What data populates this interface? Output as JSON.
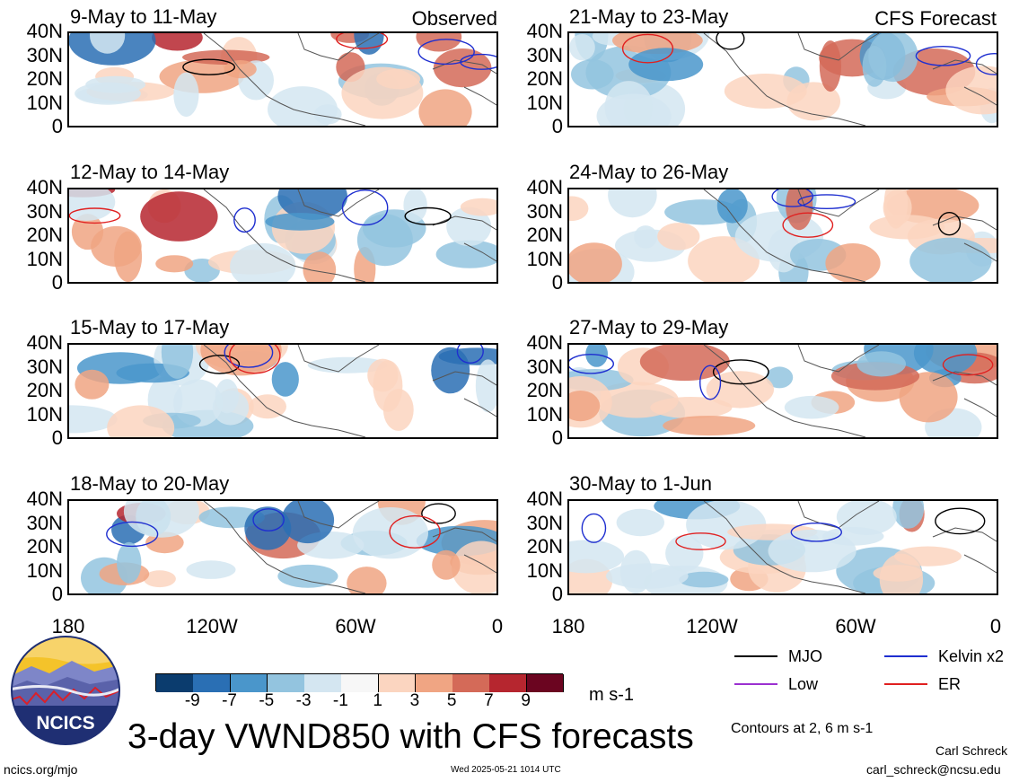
{
  "header": {
    "left_label": "Observed",
    "right_label": "CFS Forecast"
  },
  "panels_left": [
    {
      "title": "9-May to 11-May"
    },
    {
      "title": "12-May to 14-May"
    },
    {
      "title": "15-May to 17-May"
    },
    {
      "title": "18-May to 20-May"
    }
  ],
  "panels_right": [
    {
      "title": "21-May to 23-May"
    },
    {
      "title": "24-May to 26-May"
    },
    {
      "title": "27-May to 29-May"
    },
    {
      "title": "30-May to 1-Jun"
    }
  ],
  "y_ticks": [
    "40N",
    "30N",
    "20N",
    "10N",
    "0"
  ],
  "x_ticks": [
    "180",
    "120W",
    "60W",
    "0"
  ],
  "colorbar": {
    "colors": [
      "#0b3c6e",
      "#2a6fb4",
      "#4a96cb",
      "#93c4df",
      "#d4e6f1",
      "#f7f7f7",
      "#fbd5c0",
      "#f0a583",
      "#d46a58",
      "#b6262f",
      "#6b0520"
    ],
    "labels": [
      "-9",
      "-7",
      "-5",
      "-3",
      "-1",
      "1",
      "3",
      "5",
      "7",
      "9"
    ],
    "units": "m s-1"
  },
  "legend": {
    "items": [
      {
        "label": "MJO",
        "color": "#000000"
      },
      {
        "label": "Kelvin x2",
        "color": "#1f2fd0"
      },
      {
        "label": "Low",
        "color": "#9b30d0"
      },
      {
        "label": "ER",
        "color": "#e02020"
      }
    ],
    "note": "Contours at 2, 6 m s-1"
  },
  "logo": {
    "text": "NCICS"
  },
  "main_title": "3-day VWND850 with CFS forecasts",
  "footer": {
    "url": "ncics.org/mjo",
    "timestamp": "Wed 2025-05-21 1014 UTC",
    "author": "Carl Schreck",
    "email": "carl_schreck@ncsu.edu"
  },
  "chart_data": {
    "type": "heatmap",
    "variable": "3-day VWND850",
    "units": "m s-1",
    "x_range": [
      "180",
      "0"
    ],
    "y_range": [
      "0",
      "40N"
    ],
    "contour_levels": [
      2,
      6
    ],
    "panels": [
      {
        "title": "9-May to 11-May",
        "source": "Observed"
      },
      {
        "title": "12-May to 14-May",
        "source": "Observed"
      },
      {
        "title": "15-May to 17-May",
        "source": "Observed"
      },
      {
        "title": "18-May to 20-May",
        "source": "Observed"
      },
      {
        "title": "21-May to 23-May",
        "source": "CFS Forecast"
      },
      {
        "title": "24-May to 26-May",
        "source": "CFS Forecast"
      },
      {
        "title": "27-May to 29-May",
        "source": "CFS Forecast"
      },
      {
        "title": "30-May to 1-Jun",
        "source": "CFS Forecast"
      }
    ]
  }
}
